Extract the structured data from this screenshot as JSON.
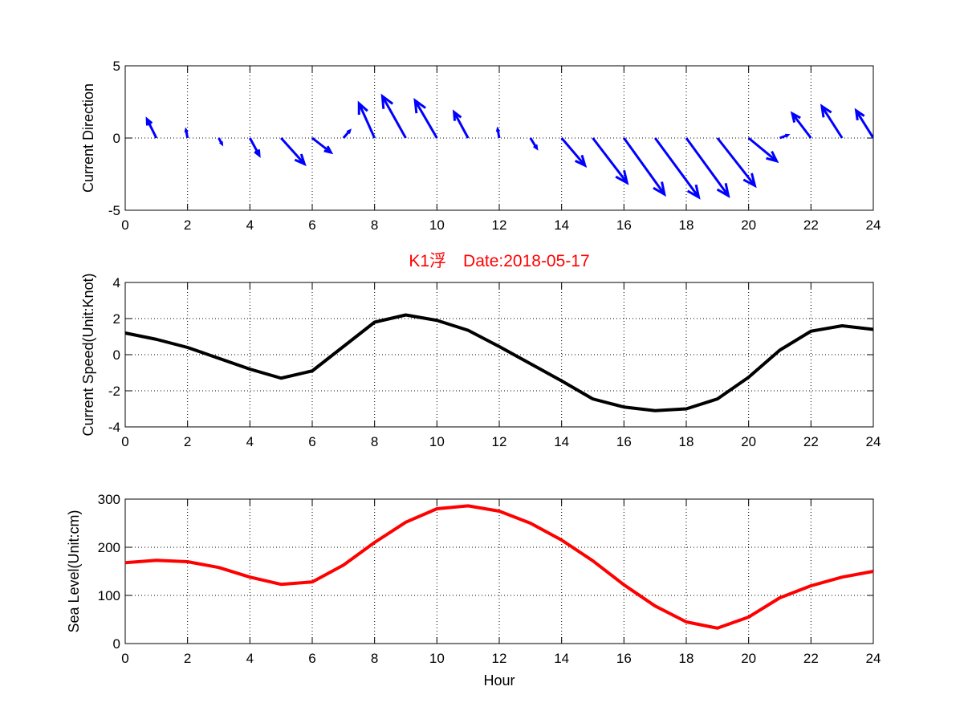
{
  "chart_data": [
    {
      "type": "quiver",
      "ylabel": "Current Direction",
      "xlim": [
        0,
        24
      ],
      "ylim": [
        -5,
        5
      ],
      "xticks": [
        0,
        2,
        4,
        6,
        8,
        10,
        12,
        14,
        16,
        18,
        20,
        22,
        24
      ],
      "yticks": [
        -5,
        0,
        5
      ],
      "grid": true,
      "color": "#0000ff",
      "arrows": [
        {
          "x": 1,
          "u": -0.3,
          "v": 1.3
        },
        {
          "x": 2,
          "u": -0.05,
          "v": 0.55
        },
        {
          "x": 3,
          "u": 0.1,
          "v": -0.4
        },
        {
          "x": 4,
          "u": 0.3,
          "v": -1.2
        },
        {
          "x": 5,
          "u": 0.75,
          "v": -1.8
        },
        {
          "x": 6,
          "u": 0.6,
          "v": -1.0
        },
        {
          "x": 7,
          "u": 0.2,
          "v": 0.5
        },
        {
          "x": 8,
          "u": -0.5,
          "v": 2.4
        },
        {
          "x": 9,
          "u": -0.75,
          "v": 2.9
        },
        {
          "x": 10,
          "u": -0.7,
          "v": 2.6
        },
        {
          "x": 11,
          "u": -0.45,
          "v": 1.8
        },
        {
          "x": 12,
          "u": -0.05,
          "v": 0.6
        },
        {
          "x": 13,
          "u": 0.2,
          "v": -0.7
        },
        {
          "x": 14,
          "u": 0.75,
          "v": -1.9
        },
        {
          "x": 15,
          "u": 1.1,
          "v": -3.1
        },
        {
          "x": 16,
          "u": 1.3,
          "v": -3.9
        },
        {
          "x": 17,
          "u": 1.4,
          "v": -4.1
        },
        {
          "x": 18,
          "u": 1.35,
          "v": -4.0
        },
        {
          "x": 19,
          "u": 1.2,
          "v": -3.3
        },
        {
          "x": 20,
          "u": 0.9,
          "v": -1.6
        },
        {
          "x": 21,
          "u": 0.25,
          "v": 0.2
        },
        {
          "x": 22,
          "u": -0.6,
          "v": 1.7
        },
        {
          "x": 23,
          "u": -0.65,
          "v": 2.2
        },
        {
          "x": 24,
          "u": -0.55,
          "v": 1.9
        }
      ]
    },
    {
      "type": "line",
      "title": "K1浮　Date:2018-05-17",
      "ylabel": "Current Speed(Unit:Knot)",
      "xlim": [
        0,
        24
      ],
      "ylim": [
        -4,
        4
      ],
      "xticks": [
        0,
        2,
        4,
        6,
        8,
        10,
        12,
        14,
        16,
        18,
        20,
        22,
        24
      ],
      "yticks": [
        -4,
        -2,
        0,
        2,
        4
      ],
      "grid": true,
      "series": [
        {
          "color": "#000000",
          "x": [
            0,
            1,
            2,
            3,
            4,
            5,
            6,
            7,
            8,
            9,
            10,
            11,
            12,
            13,
            14,
            15,
            16,
            17,
            18,
            19,
            20,
            21,
            22,
            23,
            24
          ],
          "y": [
            1.2,
            0.85,
            0.4,
            -0.2,
            -0.8,
            -1.3,
            -0.9,
            0.45,
            1.8,
            2.2,
            1.9,
            1.35,
            0.45,
            -0.5,
            -1.45,
            -2.45,
            -2.9,
            -3.1,
            -3.0,
            -2.45,
            -1.25,
            0.25,
            1.3,
            1.6,
            1.4
          ]
        }
      ]
    },
    {
      "type": "line",
      "ylabel": "Sea Level(Unit:cm)",
      "xlabel": "Hour",
      "xlim": [
        0,
        24
      ],
      "ylim": [
        0,
        300
      ],
      "xticks": [
        0,
        2,
        4,
        6,
        8,
        10,
        12,
        14,
        16,
        18,
        20,
        22,
        24
      ],
      "yticks": [
        0,
        100,
        200,
        300
      ],
      "grid": true,
      "series": [
        {
          "color": "#ff0000",
          "x": [
            0,
            1,
            2,
            3,
            4,
            5,
            6,
            7,
            8,
            9,
            10,
            11,
            12,
            13,
            14,
            15,
            16,
            17,
            18,
            19,
            20,
            21,
            22,
            23,
            24
          ],
          "y": [
            168,
            173,
            170,
            158,
            138,
            123,
            128,
            163,
            210,
            252,
            280,
            286,
            275,
            250,
            215,
            172,
            122,
            78,
            45,
            32,
            55,
            95,
            120,
            138,
            150
          ]
        }
      ]
    }
  ]
}
